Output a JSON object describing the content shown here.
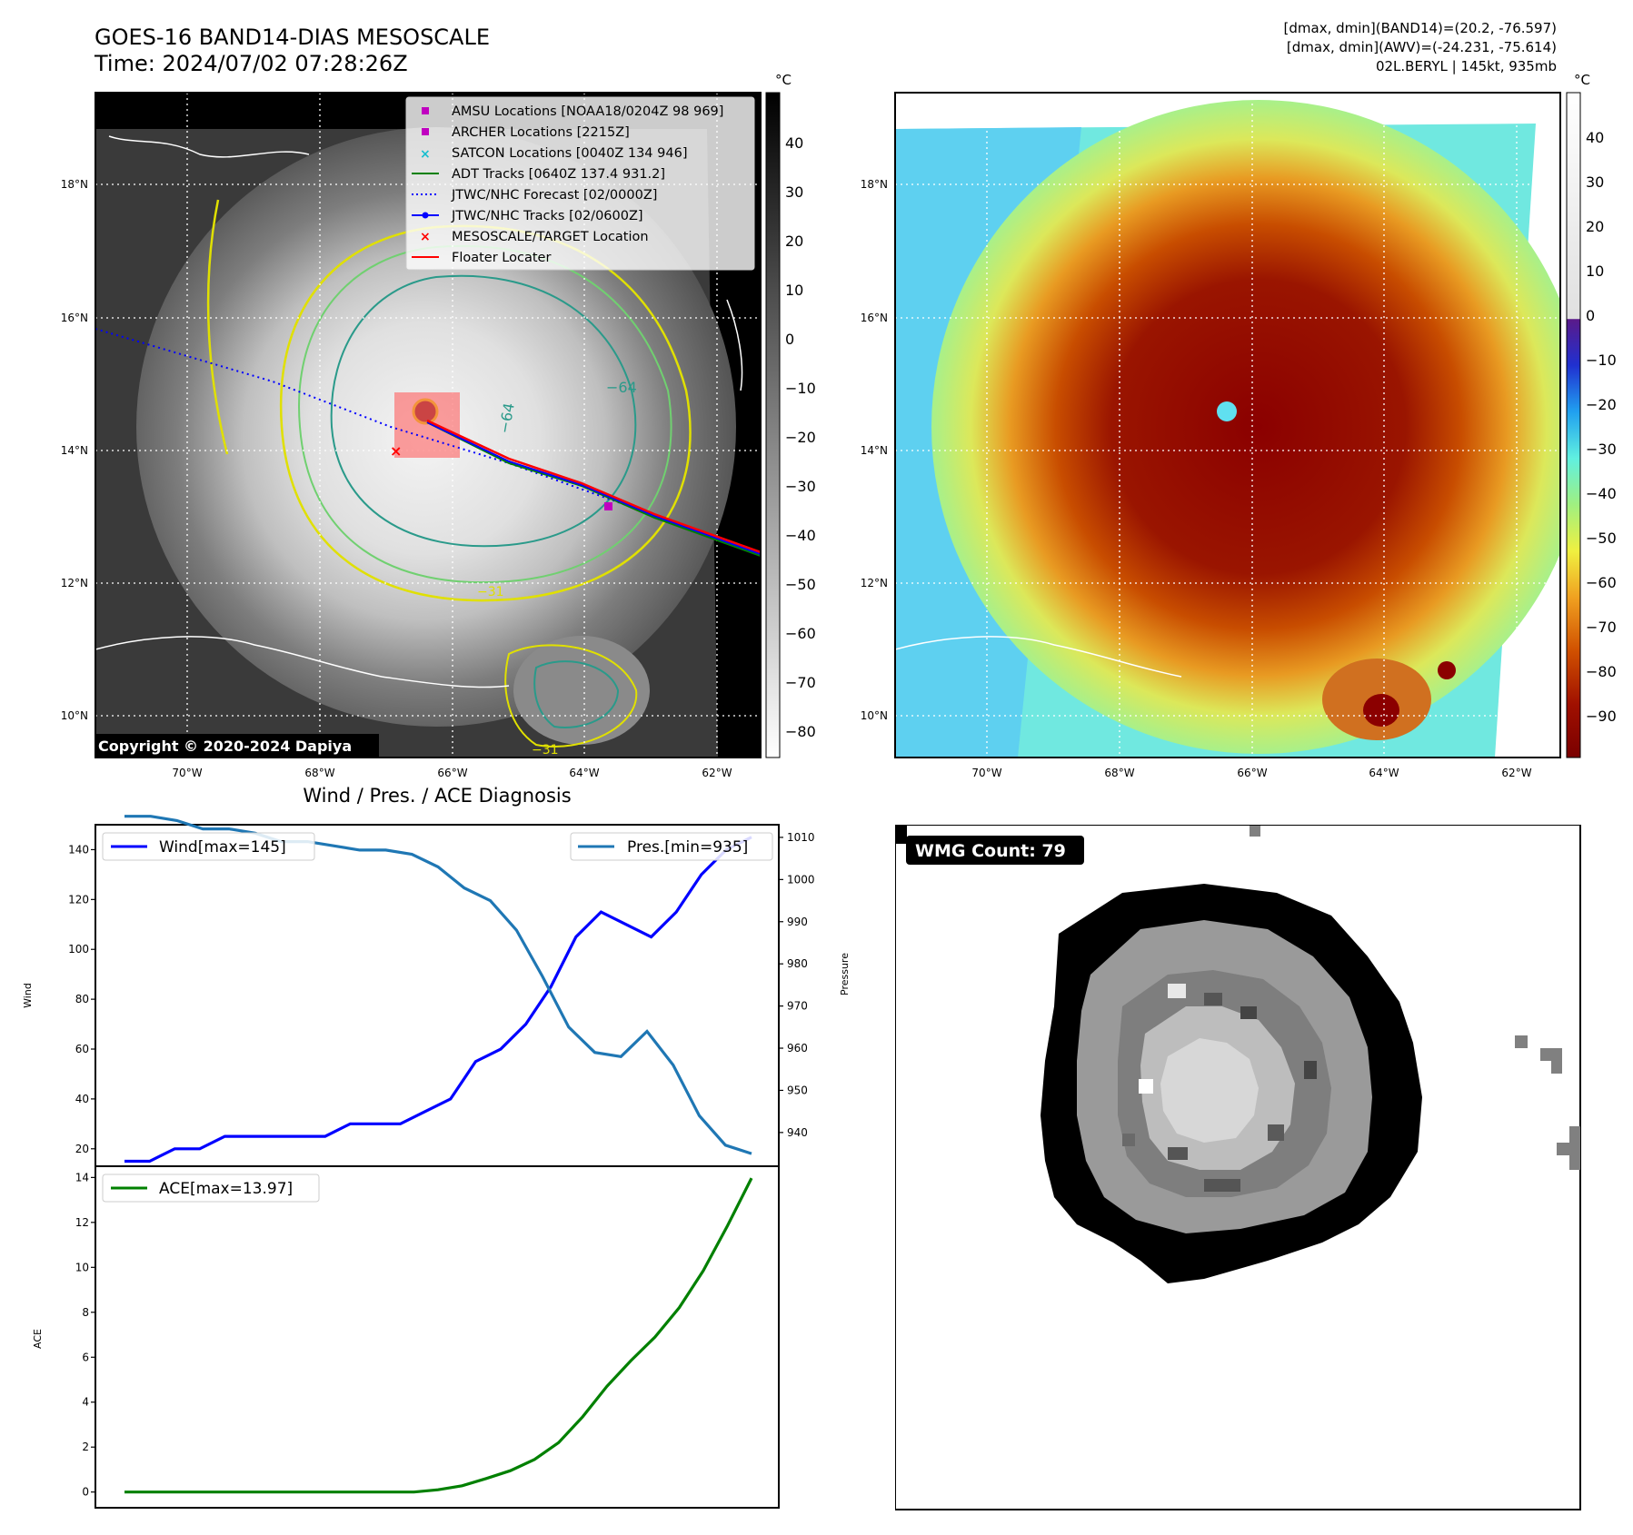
{
  "header": {
    "title_line1": "GOES-16 BAND14-DIAS MESOSCALE",
    "title_line2": "Time: 2024/07/02 07:28:26Z",
    "info_line1": "[dmax, dmin](BAND14)=(20.2, -76.597)",
    "info_line2": "[dmax, dmin](AWV)=(-24.231, -75.614)",
    "info_line3": "02L.BERYL | 145kt, 935mb"
  },
  "satellite": {
    "copyright": "Copyright © 2020-2024 Dapiya",
    "unit": "°C",
    "x_ticks": [
      "70°W",
      "68°W",
      "66°W",
      "64°W",
      "62°W"
    ],
    "y_ticks": [
      "18°N",
      "16°N",
      "14°N",
      "12°N",
      "10°N"
    ],
    "gray_colorbar_ticks": [
      "40",
      "30",
      "20",
      "10",
      "0",
      "−10",
      "−20",
      "−30",
      "−40",
      "−50",
      "−60",
      "−70",
      "−80"
    ],
    "color_colorbar_ticks": [
      "40",
      "30",
      "20",
      "10",
      "0",
      "−10",
      "−20",
      "−30",
      "−40",
      "−50",
      "−60",
      "−70",
      "−80",
      "−90"
    ],
    "contour_labels": [
      "−64",
      "−64",
      "−31",
      "−31"
    ],
    "legend": [
      {
        "label": "AMSU Locations [NOAA18/0204Z 98 969]",
        "marker": "square",
        "color": "#c000c0"
      },
      {
        "label": "ARCHER Locations [2215Z]",
        "marker": "square",
        "color": "#c000c0"
      },
      {
        "label": "SATCON Locations [0040Z 134 946]",
        "marker": "x",
        "color": "#17becf"
      },
      {
        "label": "ADT Tracks [0640Z 137.4 931.2]",
        "marker": "line",
        "color": "#008000"
      },
      {
        "label": "JTWC/NHC Forecast [02/0000Z]",
        "marker": "dotted",
        "color": "#0000ff"
      },
      {
        "label": "JTWC/NHC Tracks [02/0600Z]",
        "marker": "dotline",
        "color": "#0000ff"
      },
      {
        "label": "MESOSCALE/TARGET Location",
        "marker": "x",
        "color": "#ff0000"
      },
      {
        "label": "Floater Locater",
        "marker": "line",
        "color": "#ff0000"
      }
    ]
  },
  "diagnosis": {
    "title": "Wind / Pres. / ACE Diagnosis",
    "wind_label": "Wind",
    "pressure_label": "Pressure",
    "ace_label": "ACE",
    "legend_wind": "Wind[max=145]",
    "legend_pres": "Pres.[min=935]",
    "legend_ace": "ACE[max=13.97]"
  },
  "wmg": {
    "label": "WMG Count: 79"
  },
  "colors": {
    "wind": "#0000ff",
    "pressure": "#1f77b4",
    "ace": "#008000"
  },
  "chart_data": [
    {
      "type": "line",
      "title": "Wind / Pres. / ACE Diagnosis",
      "ylabel": "Wind",
      "ylim": [
        13,
        150
      ],
      "y_ticks": [
        20,
        40,
        60,
        80,
        100,
        120,
        140
      ],
      "series": [
        {
          "name": "Wind[max=145]",
          "values": [
            15,
            15,
            20,
            20,
            25,
            25,
            25,
            25,
            25,
            30,
            30,
            30,
            35,
            40,
            55,
            60,
            70,
            85,
            105,
            115,
            110,
            105,
            115,
            130,
            140,
            145
          ]
        }
      ]
    },
    {
      "type": "line",
      "ylabel": "Pressure",
      "ylim": [
        932,
        1013
      ],
      "y_ticks": [
        940,
        950,
        960,
        970,
        980,
        990,
        1000,
        1010
      ],
      "series": [
        {
          "name": "Pres.[min=935]",
          "values": [
            1015,
            1015,
            1014,
            1012,
            1012,
            1011,
            1009,
            1009,
            1008,
            1007,
            1007,
            1006,
            1003,
            998,
            995,
            988,
            977,
            965,
            959,
            958,
            964,
            956,
            944,
            937,
            935
          ]
        }
      ]
    },
    {
      "type": "line",
      "ylabel": "ACE",
      "ylim": [
        -0.7,
        14.5
      ],
      "y_ticks": [
        0,
        2,
        4,
        6,
        8,
        10,
        12,
        14
      ],
      "series": [
        {
          "name": "ACE[max=13.97]",
          "values": [
            0,
            0,
            0,
            0,
            0,
            0,
            0,
            0,
            0,
            0,
            0,
            0,
            0,
            0.1,
            0.28,
            0.6,
            0.95,
            1.45,
            2.2,
            3.35,
            4.7,
            5.85,
            6.9,
            8.2,
            9.85,
            11.85,
            13.97
          ]
        }
      ]
    }
  ]
}
